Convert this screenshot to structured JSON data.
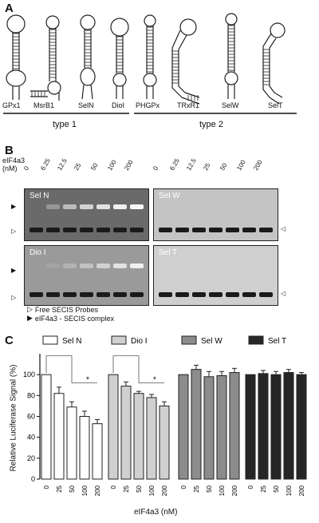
{
  "panel_a": {
    "letter": "A",
    "molecules": [
      "GPx1",
      "MsrB1",
      "SelN",
      "DioI",
      "PHGPx",
      "TRxR1",
      "SelW",
      "SelT"
    ],
    "group1_label": "type 1",
    "group2_label": "type 2"
  },
  "panel_b": {
    "letter": "B",
    "axis_label_line1": "eIF4a3",
    "axis_label_line2": "(nM)",
    "concentrations": [
      "0",
      "6.25",
      "12.5",
      "25",
      "50",
      "100",
      "200"
    ],
    "gels": [
      {
        "label": "Sel N",
        "shift_intensity": [
          0.0,
          0.3,
          0.55,
          0.7,
          0.8,
          0.9,
          0.95
        ]
      },
      {
        "label": "Sel W",
        "shift_intensity": [
          0,
          0,
          0,
          0,
          0,
          0,
          0
        ]
      },
      {
        "label": "Dio I",
        "shift_intensity": [
          0.0,
          0.1,
          0.25,
          0.4,
          0.55,
          0.7,
          0.85
        ]
      },
      {
        "label": "Sel T",
        "shift_intensity": [
          0,
          0,
          0,
          0,
          0,
          0,
          0
        ]
      }
    ],
    "legend_free": "Free SECIS Probes",
    "legend_complex": "eIF4a3 - SECIS complex"
  },
  "panel_c": {
    "letter": "C",
    "ylabel": "Relative Luciferase Signal (%)",
    "xlabel": "eIF4a3 (nM)",
    "significance_marker": "*",
    "colors": {
      "Sel N": "#ffffff",
      "Dio I": "#d0d0d0",
      "Sel W": "#8c8c8c",
      "Sel T": "#262626"
    },
    "chart_data": {
      "type": "bar",
      "categories": [
        "0",
        "25",
        "50",
        "100",
        "200"
      ],
      "yticks": [
        "0",
        "20",
        "40",
        "60",
        "80",
        "100"
      ],
      "ylim": [
        0,
        120
      ],
      "series": [
        {
          "name": "Sel N",
          "values": [
            100,
            82,
            69,
            60,
            53
          ],
          "errors": [
            0,
            6,
            5,
            5,
            4
          ]
        },
        {
          "name": "Dio I",
          "values": [
            100,
            89,
            82,
            78,
            70
          ],
          "errors": [
            0,
            4,
            2,
            3,
            4
          ]
        },
        {
          "name": "Sel W",
          "values": [
            100,
            105,
            98,
            99,
            102
          ],
          "errors": [
            0,
            4,
            5,
            4,
            4
          ]
        },
        {
          "name": "Sel T",
          "values": [
            100,
            101,
            100,
            102,
            100
          ],
          "errors": [
            0,
            3,
            3,
            3,
            2
          ]
        }
      ]
    }
  }
}
